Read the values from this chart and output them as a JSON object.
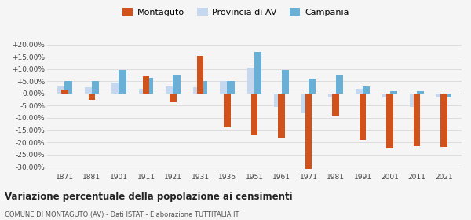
{
  "years": [
    1871,
    1881,
    1901,
    1911,
    1921,
    1931,
    1936,
    1951,
    1961,
    1971,
    1981,
    1991,
    2001,
    2011,
    2021
  ],
  "montaguto": [
    1.5,
    -2.5,
    -0.5,
    7.0,
    -3.5,
    15.5,
    -14.0,
    -17.0,
    -18.5,
    -31.0,
    -9.5,
    -19.0,
    -22.5,
    -21.5,
    -22.0
  ],
  "provincia_av": [
    3.0,
    2.5,
    4.5,
    2.0,
    3.0,
    2.5,
    5.0,
    10.5,
    -5.5,
    -8.0,
    -1.5,
    2.0,
    -1.5,
    -5.5,
    -1.5
  ],
  "campania": [
    5.0,
    5.0,
    9.5,
    6.5,
    7.5,
    5.0,
    5.0,
    17.0,
    9.5,
    6.0,
    7.5,
    3.0,
    1.0,
    1.0,
    -1.5
  ],
  "color_montaguto": "#d2521c",
  "color_provincia": "#c5d8f0",
  "color_campania": "#6aafd6",
  "title": "Variazione percentuale della popolazione ai censimenti",
  "subtitle": "COMUNE DI MONTAGUTO (AV) - Dati ISTAT - Elaborazione TUTTITALIA.IT",
  "legend_labels": [
    "Montaguto",
    "Provincia di AV",
    "Campania"
  ],
  "ylim": [
    -32,
    22
  ],
  "yticks": [
    -30,
    -25,
    -20,
    -15,
    -10,
    -5,
    0,
    5,
    10,
    15,
    20
  ],
  "background_color": "#f5f5f5",
  "grid_color": "#dddddd"
}
